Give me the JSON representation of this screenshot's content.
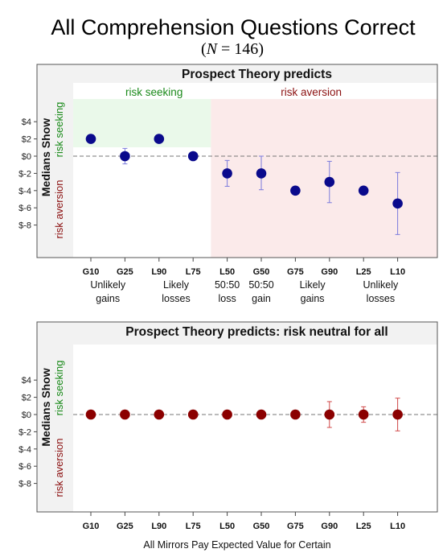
{
  "title": "All Comprehension Questions Correct",
  "subtitle": {
    "n_symbol": "N",
    "equals_text": " = 146",
    "open_paren": "(",
    "close_paren": ")"
  },
  "colors": {
    "risk_seeking_text": "#1a8a1a",
    "risk_aversion_text": "#8b1010",
    "seeking_fill": "#eaf9ea",
    "aversion_fill": "#fbeaea",
    "panel_header_fill": "#f2f2f2",
    "top_point": "#0a0a8c",
    "top_errorbar": "#7b7bdc",
    "bottom_point": "#8b0000",
    "bottom_errorbar": "#d04848",
    "zero_line": "#777777"
  },
  "chart_data": [
    {
      "type": "scatter",
      "title": "Prospect Theory predicts",
      "ylabel": "Medians Show",
      "y_side_labels": {
        "top": "risk seeking",
        "bottom": "risk aversion"
      },
      "region_labels": [
        {
          "text": "risk seeking",
          "applies_to": [
            "G10",
            "G25",
            "L90",
            "L75"
          ]
        },
        {
          "text": "risk aversion",
          "applies_to": [
            "L50",
            "G50",
            "G75",
            "G90",
            "L25",
            "L10"
          ]
        }
      ],
      "categories": [
        "G10",
        "G25",
        "L90",
        "L75",
        "L50",
        "G50",
        "G75",
        "G90",
        "L25",
        "L10"
      ],
      "group_labels": [
        {
          "line1": "Unlikely",
          "line2": "gains",
          "over": [
            "G10",
            "G25"
          ]
        },
        {
          "line1": "Likely",
          "line2": "losses",
          "over": [
            "L90",
            "L75"
          ]
        },
        {
          "line1": "50:50",
          "line2": "loss",
          "over": [
            "L50"
          ]
        },
        {
          "line1": "50:50",
          "line2": "gain",
          "over": [
            "G50"
          ]
        },
        {
          "line1": "Likely",
          "line2": "gains",
          "over": [
            "G75",
            "G90"
          ]
        },
        {
          "line1": "Unlikely",
          "line2": "losses",
          "over": [
            "L25",
            "L10"
          ]
        }
      ],
      "yticks": [
        4,
        2,
        0,
        -2,
        -4,
        -6,
        -8
      ],
      "ytick_labels": [
        "$4",
        "$2",
        "$0",
        "$-2",
        "$-4",
        "$-6",
        "$-8"
      ],
      "ylim": [
        -10.9,
        6.1
      ],
      "reference_line": 0,
      "values": [
        2,
        0,
        2,
        0,
        -2,
        -2,
        -4,
        -3,
        -4,
        -5.5
      ],
      "err_low": [
        1.6,
        -0.9,
        2,
        0,
        -3.5,
        -3.9,
        -4,
        -5.4,
        -4,
        -9.1
      ],
      "err_high": [
        2.4,
        0.9,
        2,
        0,
        -0.5,
        0,
        -4,
        -0.6,
        -4,
        -1.9
      ]
    },
    {
      "type": "scatter",
      "title": "Prospect Theory predicts: risk neutral for all",
      "ylabel": "Medians Show",
      "y_side_labels": {
        "top": "risk seeking",
        "bottom": "risk aversion"
      },
      "categories": [
        "G10",
        "G25",
        "L90",
        "L75",
        "L50",
        "G50",
        "G75",
        "G90",
        "L25",
        "L10"
      ],
      "yticks": [
        4,
        2,
        0,
        -2,
        -4,
        -6,
        -8
      ],
      "ytick_labels": [
        "$4",
        "$2",
        "$0",
        "$-2",
        "$-4",
        "$-6",
        "$-8"
      ],
      "ylim": [
        -10.9,
        6.1
      ],
      "reference_line": 0,
      "values": [
        0,
        0,
        0,
        0,
        0,
        0,
        0,
        0,
        0,
        0
      ],
      "err_low": [
        0,
        0,
        0,
        0,
        0,
        0,
        0,
        -1.5,
        -0.9,
        -1.9
      ],
      "err_high": [
        0,
        0,
        0,
        0,
        0,
        0,
        0,
        1.5,
        0.9,
        1.9
      ],
      "xlabel": "All Mirrors Pay Expected Value for Certain"
    }
  ]
}
